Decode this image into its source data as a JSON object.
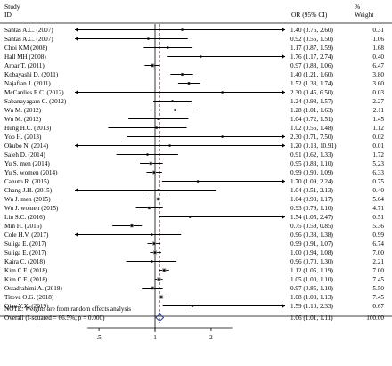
{
  "chart_data": {
    "type": "forest",
    "header": {
      "study_label": [
        "Study",
        "ID"
      ],
      "or_label": "OR (95% CI)",
      "weight_label": [
        "%",
        "Weight"
      ]
    },
    "studies": [
      {
        "label": "Santas A.C. (2007)",
        "or": 1.4,
        "lo": 0.76,
        "hi": 2.6,
        "or_text": "1.40 (0.76, 2.60)",
        "weight": "0.31",
        "arrow_left": true,
        "arrow_right": true
      },
      {
        "label": "Santas A.C. (2007)",
        "or": 0.92,
        "lo": 0.55,
        "hi": 1.5,
        "or_text": "0.92 (0.55, 1.50)",
        "weight": "1.06",
        "arrow_left": true,
        "arrow_right": false
      },
      {
        "label": "Choi KM (2008)",
        "or": 1.17,
        "lo": 0.87,
        "hi": 1.59,
        "or_text": "1.17 (0.87, 1.59)",
        "weight": "1.68",
        "arrow_left": false,
        "arrow_right": false
      },
      {
        "label": "Hall MH (2008)",
        "or": 1.76,
        "lo": 1.17,
        "hi": 2.74,
        "or_text": "1.76 (1.17, 2.74)",
        "weight": "0.40",
        "arrow_left": false,
        "arrow_right": true
      },
      {
        "label": "Aroar T. (2011)",
        "or": 0.97,
        "lo": 0.88,
        "hi": 1.06,
        "or_text": "0.97 (0.88, 1.06)",
        "weight": "6.47",
        "arrow_left": false,
        "arrow_right": false
      },
      {
        "label": "Kobayashi D. (2011)",
        "or": 1.4,
        "lo": 1.21,
        "hi": 1.6,
        "or_text": "1.40 (1.21, 1.60)",
        "weight": "3.80",
        "arrow_left": false,
        "arrow_right": false
      },
      {
        "label": "Najafian J. (2011)",
        "or": 1.52,
        "lo": 1.33,
        "hi": 1.74,
        "or_text": "1.52 (1.33, 1.74)",
        "weight": "3.60",
        "arrow_left": false,
        "arrow_right": false
      },
      {
        "label": "McCanlies E.C. (2012)",
        "or": 2.3,
        "lo": 0.45,
        "hi": 6.5,
        "or_text": "2.30 (0.45, 6.50)",
        "weight": "0.03",
        "arrow_left": true,
        "arrow_right": true
      },
      {
        "label": "Sabanayagam C. (2012)",
        "or": 1.24,
        "lo": 0.98,
        "hi": 1.57,
        "or_text": "1.24 (0.98, 1.57)",
        "weight": "2.27",
        "arrow_left": false,
        "arrow_right": false
      },
      {
        "label": "Wu M. (2012)",
        "or": 1.28,
        "lo": 1.01,
        "hi": 1.63,
        "or_text": "1.28 (1.01, 1.63)",
        "weight": "2.11",
        "arrow_left": false,
        "arrow_right": false
      },
      {
        "label": "Wu M. (2012)",
        "or": 1.04,
        "lo": 0.72,
        "hi": 1.51,
        "or_text": "1.04 (0.72, 1.51)",
        "weight": "1.45",
        "arrow_left": false,
        "arrow_right": false
      },
      {
        "label": "Hung H.C. (2013)",
        "or": 1.02,
        "lo": 0.56,
        "hi": 1.48,
        "or_text": "1.02 (0.56, 1.48)",
        "weight": "1.12",
        "arrow_left": false,
        "arrow_right": false
      },
      {
        "label": "Yoo H. (2013)",
        "or": 2.3,
        "lo": 0.71,
        "hi": 7.5,
        "or_text": "2.30 (0.71, 7.50)",
        "weight": "0.02",
        "arrow_left": false,
        "arrow_right": true
      },
      {
        "label": "Okubo N. (2014)",
        "or": 1.2,
        "lo": 0.13,
        "hi": 10.91,
        "or_text": "1.20 (0.13, 10.91)",
        "weight": "0.01",
        "arrow_left": true,
        "arrow_right": true
      },
      {
        "label": "Saleh D. (2014)",
        "or": 0.91,
        "lo": 0.62,
        "hi": 1.33,
        "or_text": "0.91 (0.62, 1.33)",
        "weight": "1.72",
        "arrow_left": false,
        "arrow_right": false
      },
      {
        "label": "Yu S. men (2014)",
        "or": 0.95,
        "lo": 0.83,
        "hi": 1.1,
        "or_text": "0.95 (0.83, 1.10)",
        "weight": "5.23",
        "arrow_left": false,
        "arrow_right": false
      },
      {
        "label": "Yu S. women (2014)",
        "or": 0.99,
        "lo": 0.9,
        "hi": 1.09,
        "or_text": "0.99 (0.90, 1.09)",
        "weight": "6.33",
        "arrow_left": false,
        "arrow_right": false
      },
      {
        "label": "Canuto R. (2015)",
        "or": 1.7,
        "lo": 1.09,
        "hi": 2.24,
        "or_text": "1.70 (1.09, 2.24)",
        "weight": "0.75",
        "arrow_left": false,
        "arrow_right": true
      },
      {
        "label": "Chang J.H. (2015)",
        "or": 1.04,
        "lo": 0.51,
        "hi": 2.13,
        "or_text": "1.04 (0.51, 2.13)",
        "weight": "0.40",
        "arrow_left": true,
        "arrow_right": false
      },
      {
        "label": "Wu J. men (2015)",
        "or": 1.04,
        "lo": 0.93,
        "hi": 1.17,
        "or_text": "1.04 (0.93, 1.17)",
        "weight": "5.64",
        "arrow_left": false,
        "arrow_right": false
      },
      {
        "label": "Wu J. women (2015)",
        "or": 0.93,
        "lo": 0.79,
        "hi": 1.1,
        "or_text": "0.93 (0.79, 1.10)",
        "weight": "4.71",
        "arrow_left": false,
        "arrow_right": false
      },
      {
        "label": "Lin S.C. (2016)",
        "or": 1.54,
        "lo": 1.05,
        "hi": 2.47,
        "or_text": "1.54 (1.05, 2.47)",
        "weight": "0.51",
        "arrow_left": false,
        "arrow_right": true
      },
      {
        "label": "Min H. (2016)",
        "or": 0.75,
        "lo": 0.59,
        "hi": 0.85,
        "or_text": "0.75 (0.59, 0.85)",
        "weight": "5.36",
        "arrow_left": false,
        "arrow_right": false
      },
      {
        "label": "Cole H.V. (2017)",
        "or": 0.96,
        "lo": 0.38,
        "hi": 1.38,
        "or_text": "0.96 (0.38, 1.38)",
        "weight": "0.99",
        "arrow_left": true,
        "arrow_right": false
      },
      {
        "label": "Suliga E. (2017)",
        "or": 0.99,
        "lo": 0.91,
        "hi": 1.07,
        "or_text": "0.99 (0.91, 1.07)",
        "weight": "6.74",
        "arrow_left": false,
        "arrow_right": false
      },
      {
        "label": "Suliga E. (2017)",
        "or": 1.0,
        "lo": 0.94,
        "hi": 1.08,
        "or_text": "1.00 (0.94, 1.08)",
        "weight": "7.00",
        "arrow_left": false,
        "arrow_right": false
      },
      {
        "label": "Kaira C. (2018)",
        "or": 0.96,
        "lo": 0.7,
        "hi": 1.3,
        "or_text": "0.96 (0.70, 1.30)",
        "weight": "2.21",
        "arrow_left": false,
        "arrow_right": false
      },
      {
        "label": "Kim C.E. (2018)",
        "or": 1.12,
        "lo": 1.05,
        "hi": 1.19,
        "or_text": "1.12 (1.05, 1.19)",
        "weight": "7.00",
        "arrow_left": false,
        "arrow_right": false
      },
      {
        "label": "Kim C.E. (2018)",
        "or": 1.05,
        "lo": 1.0,
        "hi": 1.1,
        "or_text": "1.05 (1.00, 1.10)",
        "weight": "7.45",
        "arrow_left": false,
        "arrow_right": false
      },
      {
        "label": "Ostadrahimi A. (2018)",
        "or": 0.97,
        "lo": 0.85,
        "hi": 1.1,
        "or_text": "0.97 (0.85, 1.10)",
        "weight": "5.50",
        "arrow_left": false,
        "arrow_right": false
      },
      {
        "label": "Titova O.G. (2018)",
        "or": 1.08,
        "lo": 1.03,
        "hi": 1.13,
        "or_text": "1.08 (1.03, 1.13)",
        "weight": "7.45",
        "arrow_left": false,
        "arrow_right": false
      },
      {
        "label": "Qian Y.X. (2019)",
        "or": 1.59,
        "lo": 1.1,
        "hi": 2.33,
        "or_text": "1.59 (1.10, 2.33)",
        "weight": "0.67",
        "arrow_left": false,
        "arrow_right": true
      }
    ],
    "overall": {
      "label": "Overall  (I-squared = 66.5%, p = 0.000)",
      "or": 1.06,
      "lo": 1.01,
      "hi": 1.11,
      "or_text": "1.06 (1.01, 1.11)",
      "weight": "100.00"
    },
    "note": "NOTE: Weights are from random effects analysis",
    "x_ticks": [
      {
        "value": 0.5,
        "label": ".5"
      },
      {
        "value": 1,
        "label": "1"
      },
      {
        "value": 2,
        "label": "2"
      }
    ],
    "x_scale": "log",
    "x_display_range": [
      0.433,
      2.6
    ]
  }
}
